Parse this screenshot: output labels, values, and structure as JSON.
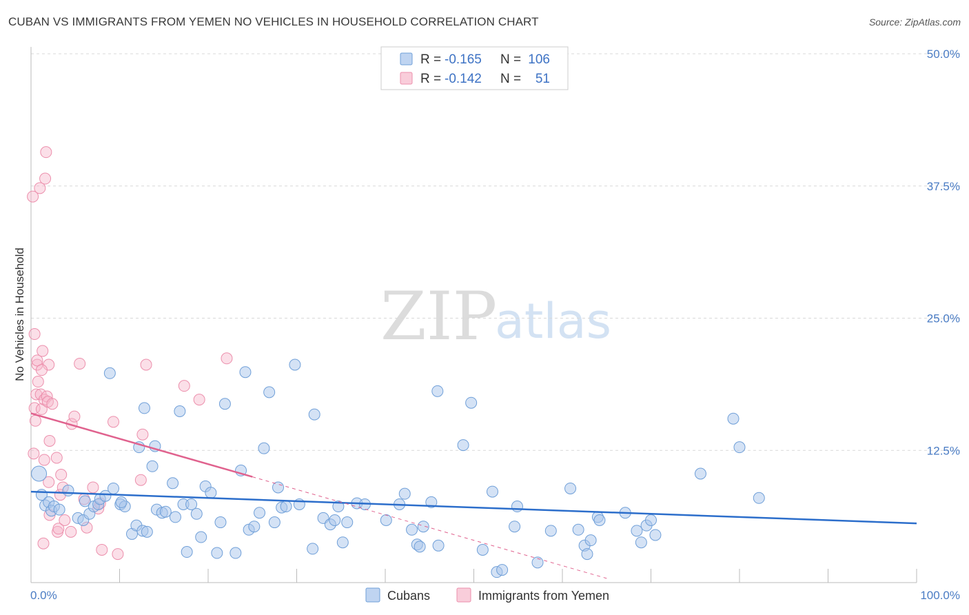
{
  "title": "CUBAN VS IMMIGRANTS FROM YEMEN NO VEHICLES IN HOUSEHOLD CORRELATION CHART",
  "source": "Source: ZipAtlas.com",
  "watermark": {
    "part1": "ZIP",
    "part2": "atlas"
  },
  "colors": {
    "cubans_fill": "#a9c6ec",
    "cubans_stroke": "#6f9fd8",
    "cubans_line": "#2c6ecb",
    "yemen_fill": "#f6b8cb",
    "yemen_stroke": "#ec8fac",
    "yemen_line": "#e0628e",
    "grid": "#d8d8d8",
    "tick_label": "#4a7cc4"
  },
  "legend": {
    "rows": [
      {
        "r_label": "R =",
        "r_value": "-0.165",
        "n_label": "N =",
        "n_value": "106"
      },
      {
        "r_label": "R =",
        "r_value": "-0.142",
        "n_label": "N =",
        "n_value": "51"
      }
    ]
  },
  "bottom_legend": [
    "Cubans",
    "Immigrants from Yemen"
  ],
  "chart_data": {
    "type": "scatter",
    "title": "CUBAN VS IMMIGRANTS FROM YEMEN NO VEHICLES IN HOUSEHOLD CORRELATION CHART",
    "xlabel": "",
    "ylabel": "No Vehicles in Household",
    "xlim": [
      0,
      100
    ],
    "ylim": [
      0,
      50
    ],
    "x_ticks_labels": [
      "0.0%",
      "100.0%"
    ],
    "y_ticks": [
      12.5,
      25.0,
      37.5,
      50.0
    ],
    "y_tick_labels": [
      "12.5%",
      "25.0%",
      "37.5%",
      "50.0%"
    ],
    "grid": true,
    "legend_position": "top-center",
    "series": [
      {
        "name": "Cubans",
        "R": -0.165,
        "N": 106,
        "trend": {
          "x0": 0,
          "y0": 8.6,
          "x1": 100,
          "y1": 5.6
        },
        "points": [
          [
            0.9,
            10.3
          ],
          [
            1.2,
            8.3
          ],
          [
            1.6,
            7.3
          ],
          [
            2.0,
            7.6
          ],
          [
            2.3,
            6.8
          ],
          [
            2.6,
            7.2
          ],
          [
            3.2,
            6.9
          ],
          [
            4.2,
            8.7
          ],
          [
            5.3,
            6.1
          ],
          [
            6.1,
            7.7
          ],
          [
            5.9,
            5.9
          ],
          [
            6.6,
            6.5
          ],
          [
            7.1,
            7.2
          ],
          [
            7.6,
            7.4
          ],
          [
            7.8,
            7.9
          ],
          [
            8.4,
            8.2
          ],
          [
            8.9,
            19.8
          ],
          [
            9.3,
            8.9
          ],
          [
            10.1,
            7.4
          ],
          [
            10.6,
            7.2
          ],
          [
            10.2,
            7.6
          ],
          [
            11.4,
            4.6
          ],
          [
            11.9,
            5.4
          ],
          [
            12.2,
            12.8
          ],
          [
            12.6,
            4.9
          ],
          [
            12.8,
            16.5
          ],
          [
            13.1,
            4.8
          ],
          [
            13.7,
            11.0
          ],
          [
            14.0,
            12.9
          ],
          [
            14.2,
            6.9
          ],
          [
            14.8,
            6.6
          ],
          [
            15.2,
            6.7
          ],
          [
            16.0,
            9.4
          ],
          [
            16.3,
            6.2
          ],
          [
            16.8,
            16.2
          ],
          [
            17.2,
            7.4
          ],
          [
            17.6,
            2.9
          ],
          [
            18.1,
            7.4
          ],
          [
            18.7,
            6.5
          ],
          [
            19.2,
            4.3
          ],
          [
            19.7,
            9.1
          ],
          [
            20.3,
            8.5
          ],
          [
            21.0,
            2.8
          ],
          [
            21.4,
            5.7
          ],
          [
            21.9,
            16.9
          ],
          [
            23.1,
            2.8
          ],
          [
            23.7,
            10.6
          ],
          [
            24.2,
            19.9
          ],
          [
            24.6,
            5.0
          ],
          [
            25.2,
            5.3
          ],
          [
            25.8,
            6.6
          ],
          [
            26.3,
            12.7
          ],
          [
            26.9,
            18.0
          ],
          [
            27.5,
            5.7
          ],
          [
            27.9,
            9.0
          ],
          [
            28.3,
            7.1
          ],
          [
            28.8,
            7.2
          ],
          [
            29.8,
            20.6
          ],
          [
            30.3,
            7.4
          ],
          [
            31.8,
            3.2
          ],
          [
            32.0,
            15.9
          ],
          [
            33.0,
            6.1
          ],
          [
            33.8,
            5.5
          ],
          [
            34.3,
            5.9
          ],
          [
            34.7,
            7.2
          ],
          [
            35.2,
            3.8
          ],
          [
            35.7,
            5.7
          ],
          [
            36.8,
            7.5
          ],
          [
            37.7,
            7.4
          ],
          [
            40.1,
            5.9
          ],
          [
            41.6,
            7.4
          ],
          [
            42.2,
            8.4
          ],
          [
            43.0,
            5.0
          ],
          [
            43.6,
            3.6
          ],
          [
            43.9,
            3.4
          ],
          [
            44.3,
            5.3
          ],
          [
            45.2,
            7.6
          ],
          [
            46.0,
            3.5
          ],
          [
            45.9,
            18.1
          ],
          [
            48.8,
            13.0
          ],
          [
            49.7,
            17.0
          ],
          [
            51.0,
            3.1
          ],
          [
            52.1,
            8.6
          ],
          [
            52.6,
            1.0
          ],
          [
            53.2,
            1.2
          ],
          [
            54.9,
            7.2
          ],
          [
            54.6,
            5.3
          ],
          [
            57.2,
            1.9
          ],
          [
            58.7,
            4.9
          ],
          [
            60.9,
            8.9
          ],
          [
            61.8,
            5.0
          ],
          [
            62.5,
            3.5
          ],
          [
            62.8,
            2.7
          ],
          [
            64.0,
            6.2
          ],
          [
            63.2,
            4.0
          ],
          [
            64.2,
            5.9
          ],
          [
            67.1,
            6.6
          ],
          [
            68.4,
            4.9
          ],
          [
            68.9,
            3.8
          ],
          [
            69.5,
            5.4
          ],
          [
            70.0,
            5.9
          ],
          [
            70.5,
            4.5
          ],
          [
            75.6,
            10.3
          ],
          [
            79.3,
            15.5
          ],
          [
            80.0,
            12.8
          ],
          [
            82.2,
            8.0
          ]
        ]
      },
      {
        "name": "Immigrants from Yemen",
        "R": -0.142,
        "N": 51,
        "trend": {
          "x0": 0,
          "y0": 16.0,
          "x1": 25,
          "y1": 10.0
        },
        "trend_dashed_to": {
          "x": 65,
          "y": 0.4
        },
        "points": [
          [
            0.2,
            36.5
          ],
          [
            0.5,
            15.3
          ],
          [
            0.6,
            17.8
          ],
          [
            0.4,
            16.5
          ],
          [
            0.3,
            12.2
          ],
          [
            0.4,
            23.5
          ],
          [
            0.7,
            20.6
          ],
          [
            0.7,
            21.0
          ],
          [
            0.8,
            19.0
          ],
          [
            1.0,
            37.3
          ],
          [
            1.1,
            17.8
          ],
          [
            1.2,
            16.4
          ],
          [
            1.3,
            21.9
          ],
          [
            1.5,
            17.3
          ],
          [
            1.5,
            11.6
          ],
          [
            1.4,
            3.7
          ],
          [
            1.6,
            38.2
          ],
          [
            1.7,
            40.7
          ],
          [
            1.8,
            17.6
          ],
          [
            1.9,
            17.1
          ],
          [
            2.0,
            20.6
          ],
          [
            2.1,
            13.4
          ],
          [
            2.1,
            6.4
          ],
          [
            2.4,
            16.9
          ],
          [
            2.9,
            11.8
          ],
          [
            3.0,
            4.8
          ],
          [
            3.1,
            5.1
          ],
          [
            3.3,
            8.3
          ],
          [
            3.4,
            10.2
          ],
          [
            3.6,
            9.0
          ],
          [
            3.8,
            5.9
          ],
          [
            4.5,
            4.8
          ],
          [
            4.6,
            15.0
          ],
          [
            4.9,
            15.7
          ],
          [
            5.5,
            20.7
          ],
          [
            6.0,
            7.9
          ],
          [
            6.3,
            5.2
          ],
          [
            7.0,
            9.0
          ],
          [
            7.6,
            7.0
          ],
          [
            7.8,
            7.5
          ],
          [
            8.0,
            3.1
          ],
          [
            9.3,
            15.2
          ],
          [
            9.8,
            2.7
          ],
          [
            12.4,
            9.7
          ],
          [
            12.6,
            14.0
          ],
          [
            13.0,
            20.6
          ],
          [
            17.3,
            18.6
          ],
          [
            19.0,
            17.3
          ],
          [
            22.1,
            21.2
          ],
          [
            1.2,
            20.1
          ],
          [
            2.0,
            9.5
          ]
        ]
      }
    ]
  }
}
